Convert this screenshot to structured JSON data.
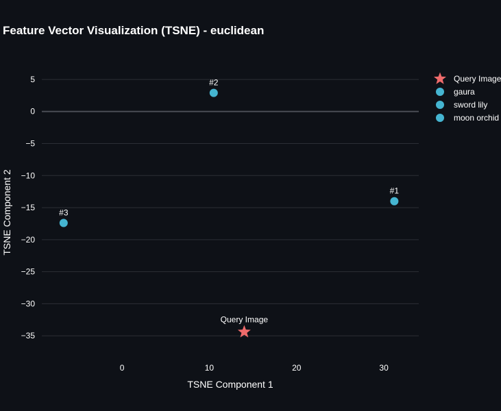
{
  "chart_data": {
    "type": "scatter",
    "title": "Feature Vector Visualization (TSNE) - euclidean",
    "xlabel": "TSNE Component 1",
    "ylabel": "TSNE Component 2",
    "xlim": [
      -9.2,
      34
    ],
    "ylim": [
      -38.4,
      8.2
    ],
    "xticks": [
      0,
      10,
      20,
      30
    ],
    "yticks": [
      5,
      0,
      -5,
      -10,
      -15,
      -20,
      -25,
      -30,
      -35
    ],
    "grid": true,
    "legend_position": "top-right",
    "series": [
      {
        "name": "Query Image",
        "marker": "star",
        "color": "#ef6b6b",
        "x": 14,
        "y": -34.4,
        "label": "Query Image"
      },
      {
        "name": "gaura",
        "marker": "circle",
        "color": "#45b5d1",
        "x": 31.2,
        "y": -14.0,
        "label": "#1"
      },
      {
        "name": "sword lily",
        "marker": "circle",
        "color": "#45b5d1",
        "x": 10.5,
        "y": 2.9,
        "label": "#2"
      },
      {
        "name": "moon orchid",
        "marker": "circle",
        "color": "#45b5d1",
        "x": -6.7,
        "y": -17.4,
        "label": "#3"
      }
    ]
  }
}
